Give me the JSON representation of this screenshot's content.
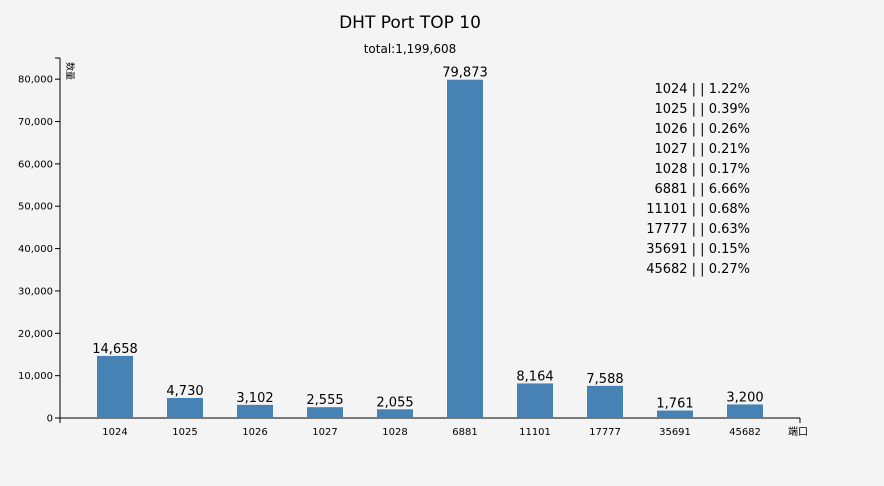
{
  "chart_data": {
    "type": "bar",
    "title": "DHT Port TOP 10",
    "subtitle": "total:1,199,608",
    "ylabel": "数量",
    "xlabel": "端口",
    "categories": [
      "1024",
      "1025",
      "1026",
      "1027",
      "1028",
      "6881",
      "11101",
      "17777",
      "35691",
      "45682"
    ],
    "values": [
      14658,
      4730,
      3102,
      2555,
      2055,
      79873,
      8164,
      7588,
      1761,
      3200
    ],
    "data_labels": [
      "14,658",
      "4,730",
      "3,102",
      "2,555",
      "2,055",
      "79,873",
      "8,164",
      "7,588",
      "1,761",
      "3,200"
    ],
    "ylim": [
      0,
      85000
    ],
    "yticks": [
      0,
      10000,
      20000,
      30000,
      40000,
      50000,
      60000,
      70000,
      80000
    ],
    "ytick_labels": [
      "0",
      "10,000",
      "20,000",
      "30,000",
      "40,000",
      "50,000",
      "60,000",
      "70,000",
      "80,000"
    ],
    "bar_color": "#4682b4",
    "grid": false,
    "legend_position": "top-right",
    "legend": [
      "1024 | | 1.22%",
      "1025 | | 0.39%",
      "1026 | | 0.26%",
      "1027 | | 0.21%",
      "1028 | | 0.17%",
      "6881 | | 6.66%",
      "11101 | | 0.68%",
      "17777 | | 0.63%",
      "35691 | | 0.15%",
      "45682 | | 0.27%"
    ]
  }
}
